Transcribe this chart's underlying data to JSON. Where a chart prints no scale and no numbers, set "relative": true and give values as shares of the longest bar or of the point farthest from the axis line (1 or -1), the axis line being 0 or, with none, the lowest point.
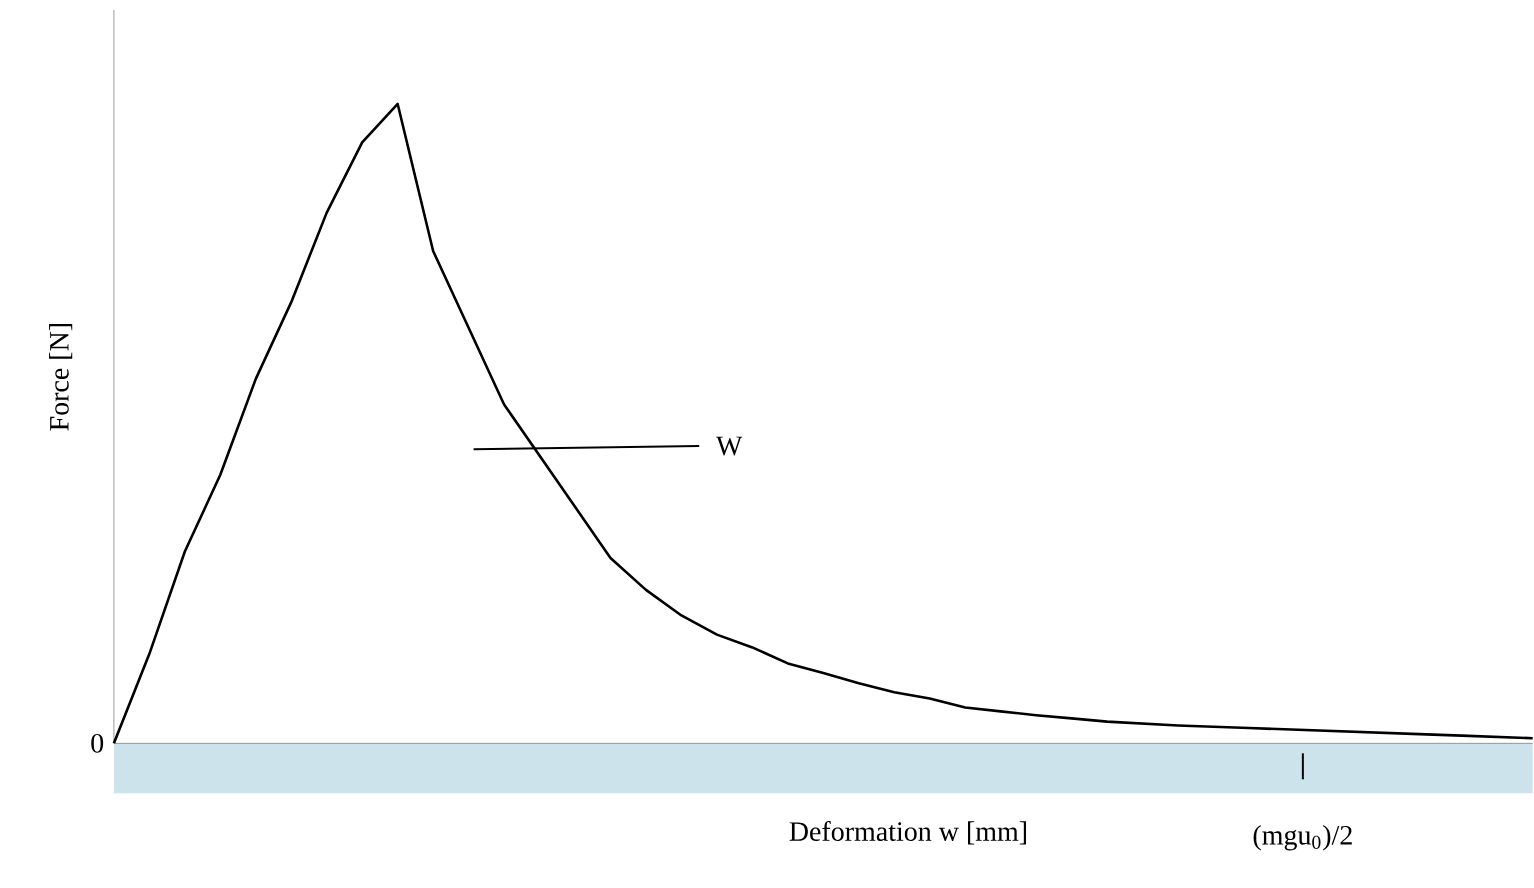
{
  "chart_data": {
    "type": "line",
    "relative": true,
    "xlabel": "Deformation w [mm]",
    "ylabel": "Force [N]",
    "categories": [
      null,
      null,
      null,
      null,
      null,
      null,
      null,
      null,
      null,
      null,
      null,
      null,
      null,
      null,
      null,
      null,
      null,
      null,
      null,
      null,
      null,
      null,
      null,
      null,
      null,
      null,
      null,
      null,
      null,
      null,
      null,
      null,
      null,
      null,
      null,
      null,
      null,
      null,
      null,
      null,
      null
    ],
    "series": [
      {
        "color": "#000000",
        "values": [
          0,
          0.14,
          0.3,
          0.42,
          0.57,
          0.69,
          0.83,
          0.94,
          1,
          0.77,
          0.65,
          0.53,
          0.45,
          0.37,
          0.29,
          0.24,
          0.2,
          0.17,
          0.15,
          0.125,
          0.11,
          0.094,
          0.08,
          0.07,
          0.056,
          0.05,
          0.044,
          0.039,
          0.034,
          0.031,
          0.028,
          0.026,
          0.024,
          0.022,
          0.02,
          0.018,
          0.016,
          0.014,
          0.012,
          0.01,
          0.008
        ]
      }
    ],
    "annotations": [
      "0",
      "W",
      "(mgu$_{0}$)/2"
    ],
    "marker": "none",
    "line_style": "solid"
  }
}
